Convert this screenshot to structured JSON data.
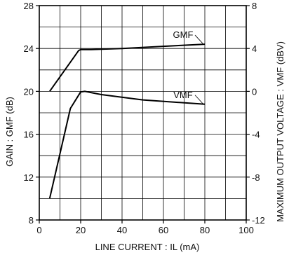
{
  "chart_data": {
    "type": "line",
    "xlabel": "LINE CURRENT : IL (mA)",
    "ylabel_left": "GAIN : GMF (dB)",
    "ylabel_right": "MAXIMUM OUTPUT VOLTAGE : VMF (dBV)",
    "xlim": [
      0,
      100
    ],
    "ylim_left": [
      8,
      28
    ],
    "ylim_right": [
      -12,
      8
    ],
    "x_ticks": [
      0,
      20,
      40,
      60,
      80,
      100
    ],
    "y_ticks_left": [
      8,
      12,
      16,
      20,
      24,
      28
    ],
    "y_ticks_right": [
      -12,
      -8,
      -4,
      0,
      4,
      8
    ],
    "grid": true,
    "series": [
      {
        "name": "GMF",
        "axis": "left",
        "x": [
          5,
          19,
          20,
          25,
          40,
          60,
          80
        ],
        "y": [
          20.0,
          23.8,
          23.9,
          23.9,
          24.0,
          24.2,
          24.4
        ]
      },
      {
        "name": "VMF",
        "axis": "right",
        "x": [
          5,
          15,
          20,
          22,
          30,
          50,
          80
        ],
        "y": [
          -10.0,
          -1.6,
          -0.05,
          0.0,
          -0.3,
          -0.8,
          -1.2
        ]
      }
    ]
  }
}
